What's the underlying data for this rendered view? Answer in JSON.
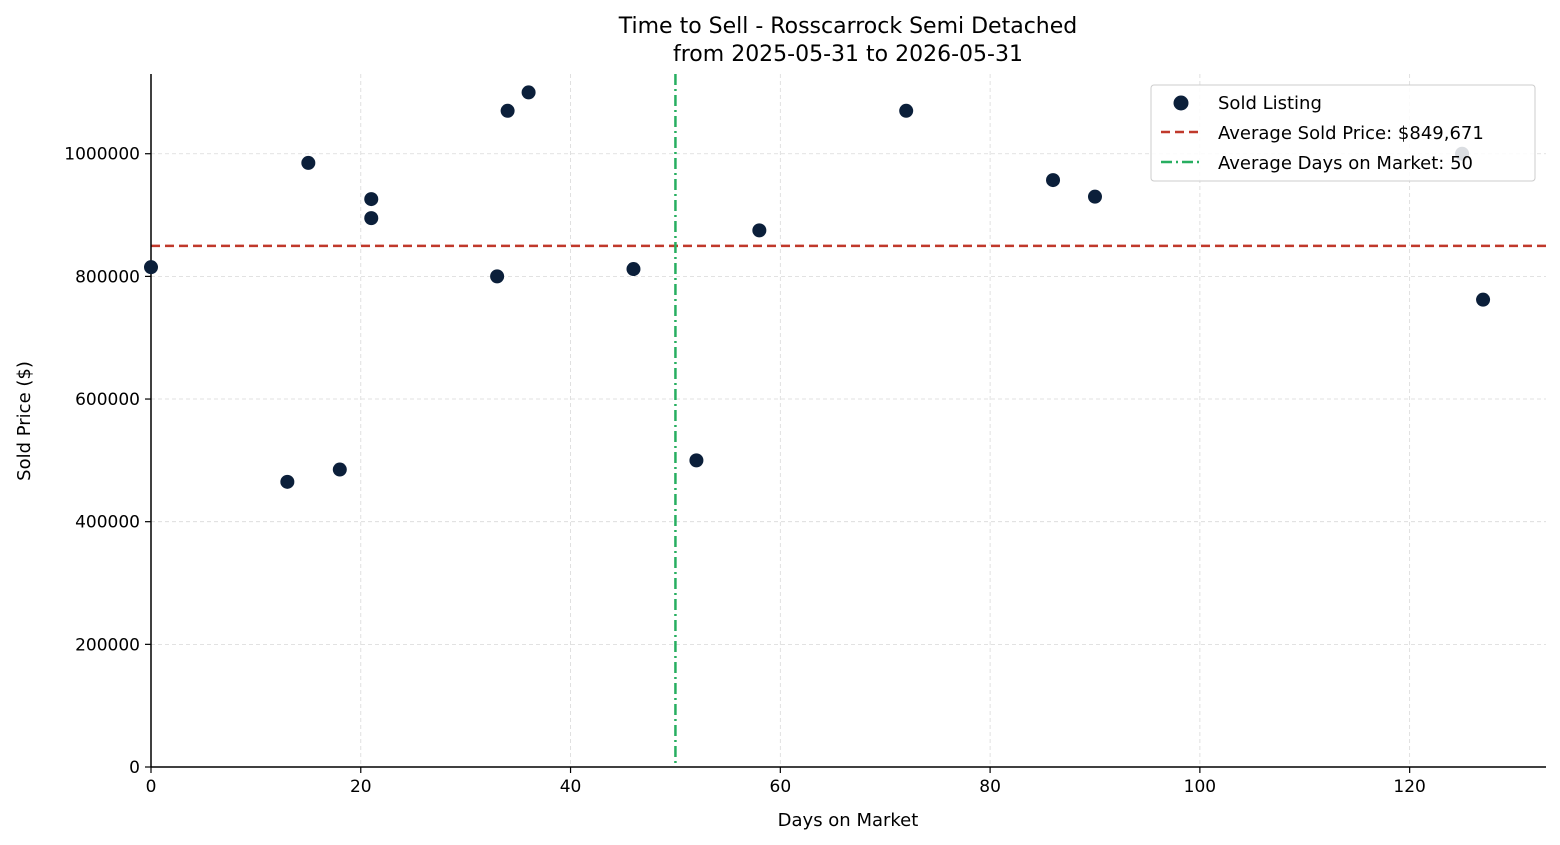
{
  "chart_data": {
    "type": "scatter",
    "title": "Time to Sell - Rosscarrock Semi Detached",
    "subtitle": "from 2025-05-31 to 2026-05-31",
    "xlabel": "Days on Market",
    "ylabel": "Sold Price ($)",
    "xlim": [
      0,
      133
    ],
    "ylim": [
      0,
      1130000
    ],
    "xticks": [
      0,
      20,
      40,
      60,
      80,
      100,
      120
    ],
    "yticks": [
      0,
      200000,
      400000,
      600000,
      800000,
      1000000
    ],
    "xtick_labels": [
      "0",
      "20",
      "40",
      "60",
      "80",
      "100",
      "120"
    ],
    "ytick_labels": [
      "0",
      "200000",
      "400000",
      "600000",
      "800000",
      "1000000"
    ],
    "grid": true,
    "legend_position": "top-right",
    "series": [
      {
        "name": "Sold Listing",
        "color": "#0b1f3a",
        "points": [
          {
            "x": 0,
            "y": 815000
          },
          {
            "x": 13,
            "y": 465000
          },
          {
            "x": 15,
            "y": 985000
          },
          {
            "x": 18,
            "y": 485000
          },
          {
            "x": 21,
            "y": 926000
          },
          {
            "x": 21,
            "y": 895000
          },
          {
            "x": 33,
            "y": 800000
          },
          {
            "x": 34,
            "y": 1070000
          },
          {
            "x": 36,
            "y": 1100000
          },
          {
            "x": 46,
            "y": 812000
          },
          {
            "x": 52,
            "y": 500000
          },
          {
            "x": 58,
            "y": 875000
          },
          {
            "x": 72,
            "y": 1070000
          },
          {
            "x": 86,
            "y": 957000
          },
          {
            "x": 90,
            "y": 930000
          },
          {
            "x": 125,
            "y": 1000000
          },
          {
            "x": 127,
            "y": 762000
          }
        ]
      }
    ],
    "reference_lines": [
      {
        "orientation": "horizontal",
        "value": 849671,
        "label": "Average Sold Price: $849,671",
        "color": "#c0392b",
        "style": "dashed"
      },
      {
        "orientation": "vertical",
        "value": 50,
        "label": "Average Days on Market: 50",
        "color": "#27ae60",
        "style": "dashdot"
      }
    ]
  }
}
